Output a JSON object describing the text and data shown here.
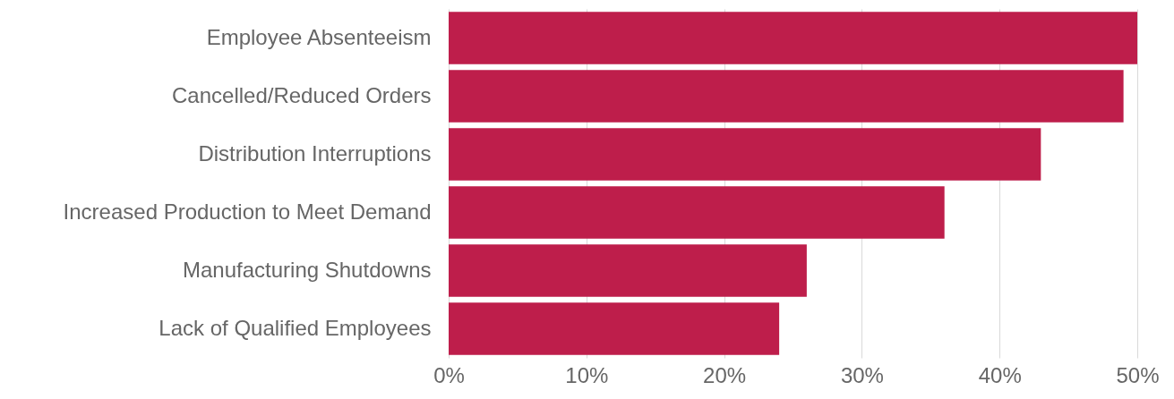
{
  "chart_data": {
    "type": "bar",
    "orientation": "horizontal",
    "categories": [
      "Employee Absenteeism",
      "Cancelled/Reduced Orders",
      "Distribution Interruptions",
      "Increased Production to Meet Demand",
      "Manufacturing Shutdowns",
      "Lack of Qualified Employees"
    ],
    "values": [
      50,
      49,
      43,
      36,
      26,
      24
    ],
    "color": "#be1e4b",
    "xlim": [
      0,
      50
    ],
    "xticks": [
      {
        "value": 0,
        "label": "0%"
      },
      {
        "value": 10,
        "label": "10%"
      },
      {
        "value": 20,
        "label": "20%"
      },
      {
        "value": 30,
        "label": "30%"
      },
      {
        "value": 40,
        "label": "40%"
      },
      {
        "value": 50,
        "label": "50%"
      }
    ],
    "grid": "x"
  }
}
